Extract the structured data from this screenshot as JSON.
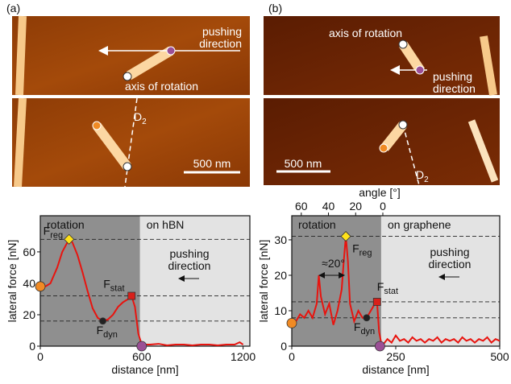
{
  "images": [
    {
      "panel": "(a)",
      "pushing": [
        "pushing",
        "direction"
      ],
      "axis": "axis of rotation",
      "d": "D",
      "d_sub": "2",
      "scale": "500 nm"
    },
    {
      "panel": "(b)",
      "pushing": [
        "pushing",
        "direction"
      ],
      "axis": "axis of rotation",
      "d": "D",
      "d_sub": "2",
      "scale": "500 nm"
    }
  ],
  "chart_data": [
    {
      "type": "line",
      "xlabel": "distance [nm]",
      "ylabel": "lateral force [nN]",
      "xlim": [
        0,
        1240
      ],
      "ylim": [
        0,
        83
      ],
      "xticks": [
        0,
        600,
        1200
      ],
      "yticks": [
        0,
        20,
        40,
        60
      ],
      "regions": [
        {
          "label": "rotation",
          "from": 0,
          "to": 590,
          "color": "#8f8f8f"
        },
        {
          "label": "on hBN",
          "from": 590,
          "to": 1240,
          "color": "#e3e3e3"
        }
      ],
      "hlines": [
        68,
        32,
        16
      ],
      "note": [
        "pushing",
        "direction"
      ],
      "series": [
        {
          "color": "#e8140f",
          "x": [
            0,
            30,
            60,
            100,
            130,
            160,
            170,
            190,
            220,
            250,
            280,
            310,
            340,
            370,
            400,
            430,
            460,
            490,
            520,
            540,
            560,
            580,
            600,
            650,
            700,
            750,
            800,
            850,
            900,
            950,
            1000,
            1050,
            1100,
            1150,
            1180,
            1200
          ],
          "values": [
            38,
            38,
            40,
            50,
            60,
            66,
            68,
            66,
            58,
            47,
            35,
            24,
            18,
            16,
            17,
            20,
            25,
            28,
            30,
            32,
            25,
            8,
            1,
            1,
            1.5,
            0.5,
            1,
            1,
            0.5,
            1,
            1,
            0.5,
            1,
            1,
            2.5,
            1
          ]
        }
      ],
      "markers": [
        {
          "x": 0,
          "y": 38,
          "color": "#f08a24",
          "shape": "circle"
        },
        {
          "x": 170,
          "y": 68,
          "color": "#ffe21a",
          "shape": "diamond",
          "label": "F",
          "sub": "reg"
        },
        {
          "x": 540,
          "y": 32,
          "color": "#d8201a",
          "shape": "square",
          "label": "F",
          "sub": "stat"
        },
        {
          "x": 370,
          "y": 16,
          "color": "#222222",
          "shape": "circle",
          "label": "F",
          "sub": "dyn"
        },
        {
          "x": 600,
          "y": 0,
          "color": "#9b4f96",
          "shape": "circle"
        }
      ]
    },
    {
      "type": "line",
      "xlabel": "distance [nm]",
      "ylabel": "lateral force [nN]",
      "x2label": "angle [°]",
      "xlim": [
        0,
        500
      ],
      "ylim": [
        0,
        36.8
      ],
      "xticks": [
        0,
        250,
        500
      ],
      "yticks": [
        0,
        10,
        20,
        30
      ],
      "x2lim": [
        67,
        -86
      ],
      "x2ticks": [
        60,
        40,
        20,
        0
      ],
      "regions": [
        {
          "label": "rotation",
          "from": 0,
          "to": 215,
          "color": "#8f8f8f"
        },
        {
          "label": "on graphene",
          "from": 215,
          "to": 500,
          "color": "#e3e3e3"
        }
      ],
      "hlines": [
        31,
        12.5,
        8
      ],
      "note": [
        "pushing",
        "direction"
      ],
      "span": {
        "label": "≈20°",
        "from": 70,
        "to": 130,
        "y": 20
      },
      "series": [
        {
          "color": "#e8140f",
          "x": [
            0,
            10,
            20,
            30,
            40,
            50,
            60,
            65,
            70,
            80,
            90,
            100,
            110,
            120,
            125,
            130,
            135,
            140,
            150,
            160,
            170,
            180,
            190,
            200,
            205,
            210,
            215,
            220,
            230,
            240,
            250,
            260,
            270,
            280,
            290,
            300,
            310,
            320,
            330,
            340,
            350,
            360,
            370,
            380,
            390,
            400,
            410,
            420,
            430,
            440,
            450,
            460,
            470,
            480,
            490,
            500
          ],
          "values": [
            6.5,
            7,
            9,
            8,
            10,
            8,
            12,
            20,
            14,
            9,
            12,
            6,
            10,
            16,
            24,
            31,
            24,
            12,
            7,
            10,
            8,
            8,
            10,
            12,
            12.5,
            4,
            1,
            0.5,
            2,
            1,
            3,
            1.5,
            2,
            1,
            2.5,
            1.5,
            2,
            1,
            2,
            1.5,
            2.5,
            1,
            2,
            1.5,
            2,
            1,
            2.5,
            1.5,
            2,
            1,
            2,
            1.5,
            2.5,
            1,
            2,
            1.5
          ]
        }
      ],
      "markers": [
        {
          "x": 0,
          "y": 6.5,
          "color": "#f08a24",
          "shape": "circle"
        },
        {
          "x": 130,
          "y": 31,
          "color": "#ffe21a",
          "shape": "diamond",
          "label": "F",
          "sub": "reg"
        },
        {
          "x": 205,
          "y": 12.5,
          "color": "#d8201a",
          "shape": "square",
          "label": "F",
          "sub": "stat"
        },
        {
          "x": 180,
          "y": 8,
          "color": "#222222",
          "shape": "circle",
          "label": "F",
          "sub": "dyn"
        },
        {
          "x": 212,
          "y": 0,
          "color": "#9b4f96",
          "shape": "circle"
        }
      ]
    }
  ]
}
